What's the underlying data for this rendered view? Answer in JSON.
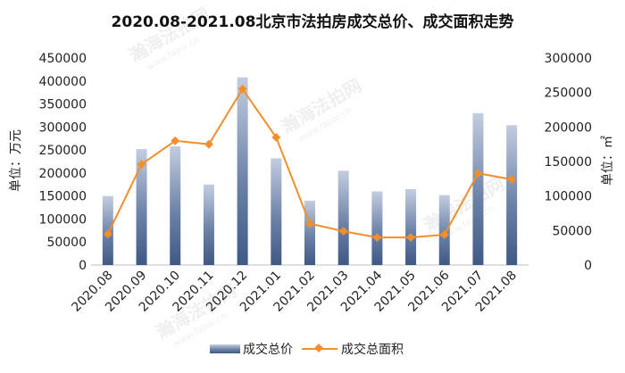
{
  "chart_data": {
    "type": "bar",
    "title": "2020.08-2021.08北京市法拍房成交总价、成交面积走势",
    "categories": [
      "2020.08",
      "2020.09",
      "2020.10",
      "2020.11",
      "2020.12",
      "2021.01",
      "2021.02",
      "2021.03",
      "2021.04",
      "2021.05",
      "2021.06",
      "2021.07",
      "2021.08"
    ],
    "ylabel_left": "单位：万元",
    "ylabel_right": "单位：㎡",
    "ylim_left": [
      0,
      450000
    ],
    "ylim_right": [
      0,
      300000
    ],
    "yticks_left": [
      0,
      50000,
      100000,
      150000,
      200000,
      250000,
      300000,
      350000,
      400000,
      450000
    ],
    "yticks_right": [
      0,
      50000,
      100000,
      150000,
      200000,
      250000,
      300000
    ],
    "grid": false,
    "legend_position": "bottom",
    "series": [
      {
        "name": "成交总价",
        "type": "bar",
        "axis": "left",
        "color": "#4a6590",
        "values": [
          150000,
          252000,
          258000,
          175000,
          408000,
          232000,
          140000,
          205000,
          160000,
          165000,
          152000,
          330000,
          304000
        ]
      },
      {
        "name": "成交总面积",
        "type": "line",
        "axis": "right",
        "color": "#f28e2b",
        "values": [
          45000,
          146000,
          180000,
          175000,
          255000,
          185000,
          60000,
          49000,
          40000,
          40000,
          44000,
          133000,
          124000
        ]
      }
    ]
  },
  "watermarks": [
    "瀚海法拍网",
    "www.fapai.cn"
  ]
}
